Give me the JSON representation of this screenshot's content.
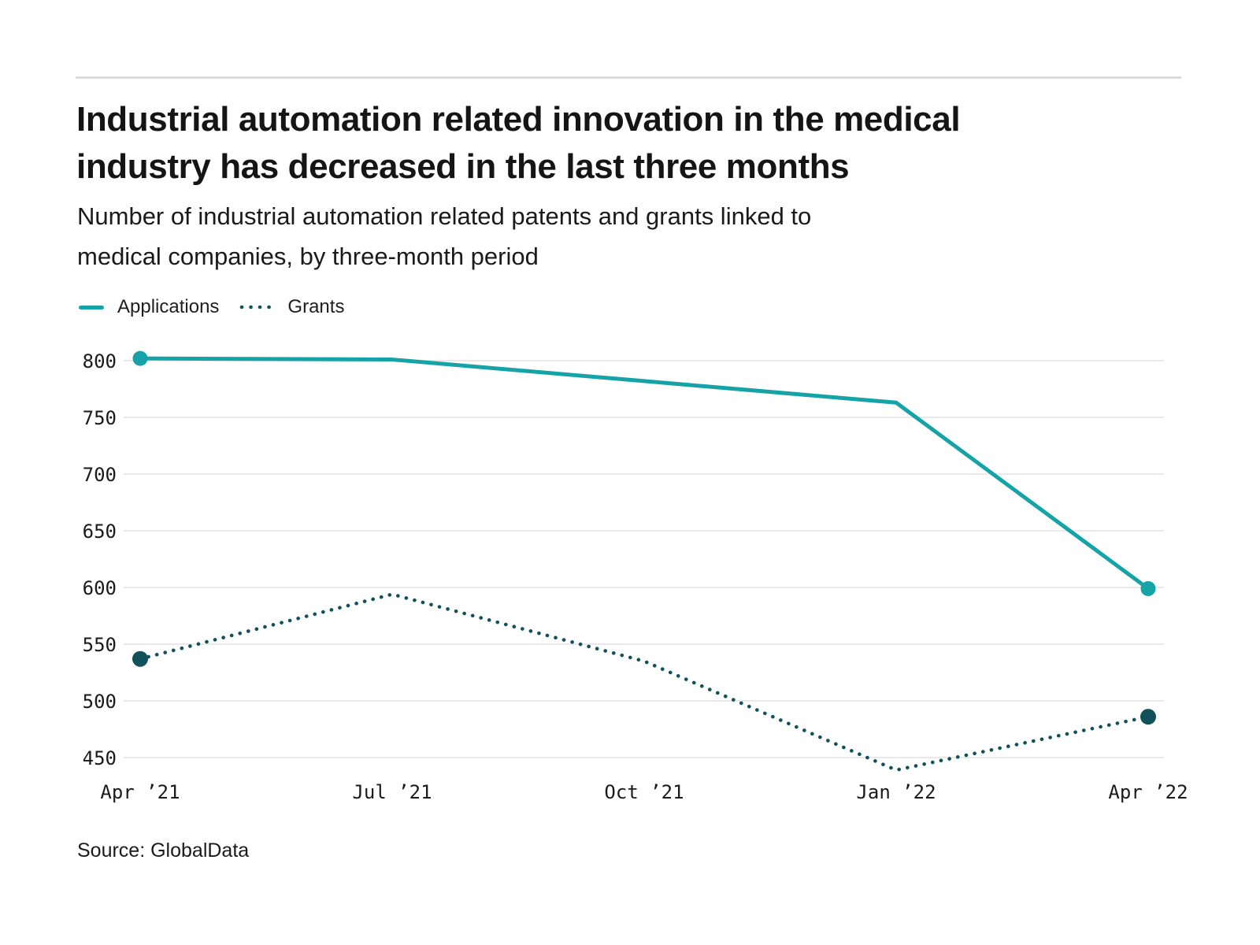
{
  "page": {
    "title_line1": "Industrial automation related innovation in the medical",
    "title_line2": "industry has decreased in the last three months",
    "subtitle_line1": "Number of industrial automation related patents and grants linked to",
    "subtitle_line2": "medical companies, by three-month period",
    "source": "Source: GlobalData"
  },
  "colors": {
    "applications": "#16a3a8",
    "grants": "#11515a",
    "gridline": "#e9e9e9",
    "tick_text": "#1a1a1a",
    "rule": "#dcdcdc"
  },
  "chart_data": {
    "type": "line",
    "title": "Number of industrial automation related patents and grants linked to medical companies, by three-month period",
    "categories": [
      "Apr ’21",
      "Jul ’21",
      "Oct ’21",
      "Jan ’22",
      "Apr ’22"
    ],
    "series": [
      {
        "name": "Applications",
        "style": "solid",
        "color_key": "applications",
        "values": [
          802,
          801,
          782,
          763,
          599
        ]
      },
      {
        "name": "Grants",
        "style": "dotted",
        "color_key": "grants",
        "values": [
          537,
          594,
          535,
          439,
          486
        ]
      }
    ],
    "xlabel": "",
    "ylabel": "",
    "ylim": [
      450,
      800
    ],
    "y_tick_labels": [
      "800",
      "750",
      "700",
      "650",
      "600",
      "550",
      "500",
      "450"
    ],
    "y_axis": {
      "min": 450,
      "max": 800,
      "step": 50
    },
    "grid": "horizontal",
    "legend_position": "top-left",
    "markers": "endpoints-only"
  }
}
